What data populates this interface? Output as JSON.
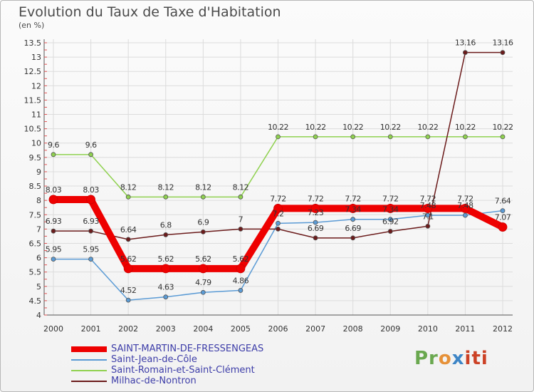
{
  "chart_data": {
    "type": "line",
    "title": "Evolution du Taux de Taxe d'Habitation",
    "ylabel": "(en %)",
    "x": [
      "2000",
      "2001",
      "2002",
      "2003",
      "2004",
      "2005",
      "2006",
      "2007",
      "2008",
      "2009",
      "2010",
      "2011",
      "2012"
    ],
    "ylim": [
      4,
      13.5
    ],
    "yticks": [
      "4",
      "4.5",
      "5",
      "5.5",
      "6",
      "6.5",
      "7",
      "7.5",
      "8",
      "8.5",
      "9",
      "9.5",
      "10",
      "10.5",
      "11",
      "11.5",
      "12",
      "12.5",
      "13",
      "13.5"
    ],
    "grid": true,
    "legend": "bottom-left",
    "series": [
      {
        "name": "SAINT-MARTIN-DE-FRESSENGEAS",
        "color": "#ee0000",
        "values": [
          8.03,
          8.03,
          5.62,
          5.62,
          5.62,
          5.62,
          7.72,
          7.72,
          7.72,
          7.72,
          7.72,
          7.72,
          7.07
        ],
        "labels": [
          "8.03",
          "8.03",
          "5.62",
          "5.62",
          "5.62",
          "5.62",
          "7.72",
          "7.72",
          "7.72",
          "7.72",
          "7.72",
          "7.72",
          "7.07"
        ]
      },
      {
        "name": "Saint-Jean-de-Côle",
        "color": "#5b9bd5",
        "values": [
          5.95,
          5.95,
          4.52,
          4.63,
          4.79,
          4.86,
          7.2,
          7.23,
          7.34,
          7.34,
          7.48,
          7.48,
          7.64
        ],
        "labels": [
          "5.95",
          "5.95",
          "4.52",
          "4.63",
          "4.79",
          "4.86",
          "7.2",
          "7.23",
          "7.34",
          "7.34",
          "7.48",
          "7.48",
          "7.64"
        ]
      },
      {
        "name": "Saint-Romain-et-Saint-Clément",
        "color": "#8fd14f",
        "values": [
          9.6,
          9.6,
          8.12,
          8.12,
          8.12,
          8.12,
          10.22,
          10.22,
          10.22,
          10.22,
          10.22,
          10.22,
          10.22
        ],
        "labels": [
          "9.6",
          "9.6",
          "8.12",
          "8.12",
          "8.12",
          "8.12",
          "10.22",
          "10.22",
          "10.22",
          "10.22",
          "10.22",
          "10.22",
          "10.22"
        ]
      },
      {
        "name": "Milhac-de-Nontron",
        "color": "#6b1b1b",
        "values": [
          6.93,
          6.93,
          6.64,
          6.8,
          6.9,
          7,
          7,
          6.69,
          6.69,
          6.92,
          7.1,
          13.16,
          13.16
        ],
        "labels": [
          "6.93",
          "6.93",
          "6.64",
          "6.8",
          "6.9",
          "7",
          "",
          "6.69",
          "6.69",
          "6.92",
          "7.1",
          "13.16",
          "13.16"
        ]
      }
    ]
  },
  "logo": {
    "p1": "Pr",
    "p2": "o",
    "p3": "x",
    "p4": "iti"
  }
}
